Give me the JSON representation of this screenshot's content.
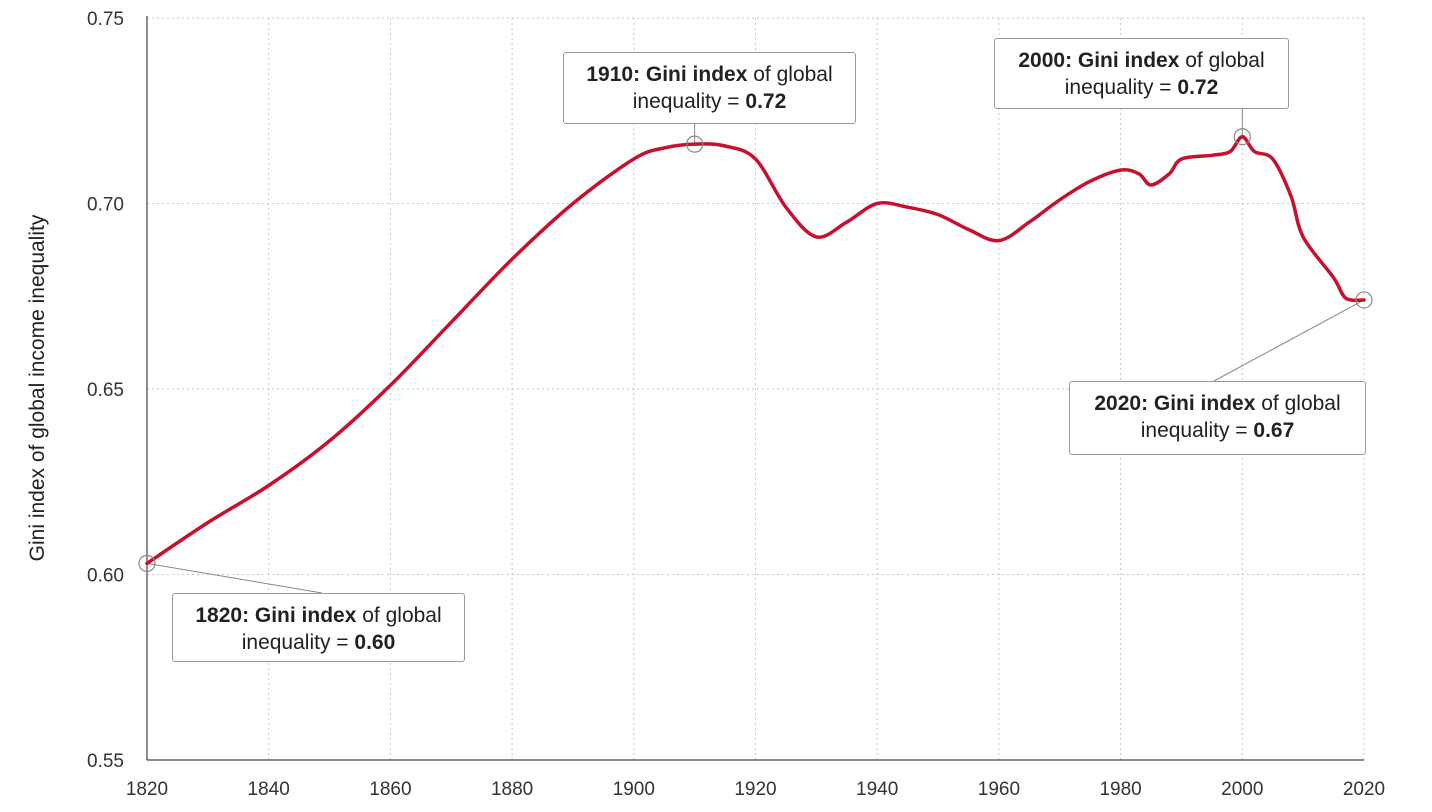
{
  "chart_data": {
    "type": "line",
    "title": "",
    "xlabel": "",
    "ylabel": "Gini index of global income inequality",
    "xlim": [
      1820,
      2020
    ],
    "ylim": [
      0.55,
      0.75
    ],
    "x_ticks": [
      1820,
      1840,
      1860,
      1880,
      1900,
      1920,
      1940,
      1960,
      1980,
      2000,
      2020
    ],
    "y_ticks": [
      "0.55",
      "0.60",
      "0.65",
      "0.70",
      "0.75"
    ],
    "grid": true,
    "color": "#c8102e",
    "series": [
      {
        "name": "Gini index of global income inequality",
        "x": [
          1820,
          1830,
          1840,
          1850,
          1860,
          1870,
          1880,
          1890,
          1900,
          1905,
          1910,
          1915,
          1920,
          1925,
          1930,
          1935,
          1940,
          1945,
          1950,
          1955,
          1960,
          1965,
          1970,
          1975,
          1980,
          1983,
          1985,
          1988,
          1990,
          1995,
          1998,
          2000,
          2002,
          2005,
          2008,
          2010,
          2015,
          2017,
          2020
        ],
        "y": [
          0.603,
          0.614,
          0.624,
          0.636,
          0.651,
          0.668,
          0.685,
          0.7,
          0.712,
          0.715,
          0.716,
          0.7155,
          0.712,
          0.699,
          0.691,
          0.695,
          0.7,
          0.699,
          0.697,
          0.693,
          0.69,
          0.695,
          0.701,
          0.706,
          0.709,
          0.708,
          0.705,
          0.708,
          0.712,
          0.713,
          0.714,
          0.718,
          0.714,
          0.712,
          0.702,
          0.691,
          0.68,
          0.6745,
          0.674
        ]
      }
    ],
    "annotations": [
      {
        "x": 1820,
        "y": 0.603,
        "year": "1820",
        "label": "Gini index",
        "text": "of global",
        "text2": "inequality =",
        "value": "0.60"
      },
      {
        "x": 1910,
        "y": 0.716,
        "year": "1910",
        "label": "Gini index",
        "text": "of global",
        "text2": "inequality =",
        "value": "0.72"
      },
      {
        "x": 2000,
        "y": 0.718,
        "year": "2000",
        "label": "Gini index",
        "text": "of global",
        "text2": "inequality =",
        "value": "0.72"
      },
      {
        "x": 2020,
        "y": 0.674,
        "year": "2020",
        "label": "Gini index",
        "text": "of global",
        "text2": "inequality =",
        "value": "0.67"
      }
    ]
  }
}
